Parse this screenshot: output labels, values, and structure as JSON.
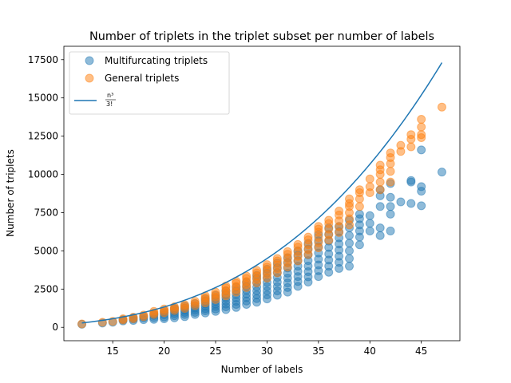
{
  "chart_data": {
    "type": "scatter",
    "title": "Number of triplets in the triplet subset per number of labels",
    "xlabel": "Number of labels",
    "ylabel": "Number of triplets",
    "xlim": [
      10.25,
      48.75
    ],
    "ylim": [
      -875,
      18375
    ],
    "xticks": [
      15,
      20,
      25,
      30,
      35,
      40,
      45
    ],
    "yticks": [
      0,
      2500,
      5000,
      7500,
      10000,
      12500,
      15000,
      17500
    ],
    "grid": false,
    "legend_position": "upper-left",
    "series": [
      {
        "name": "Multifurcating triplets",
        "kind": "scatter",
        "color": "#1f77b4",
        "alpha": 0.5,
        "points": [
          [
            12,
            200
          ],
          [
            14,
            280
          ],
          [
            15,
            330
          ],
          [
            16,
            420
          ],
          [
            16,
            500
          ],
          [
            17,
            450
          ],
          [
            17,
            540
          ],
          [
            17,
            640
          ],
          [
            18,
            500
          ],
          [
            18,
            620
          ],
          [
            18,
            720
          ],
          [
            19,
            520
          ],
          [
            19,
            640
          ],
          [
            19,
            780
          ],
          [
            19,
            880
          ],
          [
            20,
            560
          ],
          [
            20,
            680
          ],
          [
            20,
            820
          ],
          [
            20,
            960
          ],
          [
            20,
            1080
          ],
          [
            21,
            620
          ],
          [
            21,
            760
          ],
          [
            21,
            900
          ],
          [
            21,
            1040
          ],
          [
            21,
            1180
          ],
          [
            21,
            1260
          ],
          [
            22,
            700
          ],
          [
            22,
            840
          ],
          [
            22,
            980
          ],
          [
            22,
            1120
          ],
          [
            22,
            1260
          ],
          [
            22,
            1400
          ],
          [
            23,
            840
          ],
          [
            23,
            980
          ],
          [
            23,
            1120
          ],
          [
            23,
            1260
          ],
          [
            23,
            1400
          ],
          [
            23,
            1560
          ],
          [
            24,
            940
          ],
          [
            24,
            1080
          ],
          [
            24,
            1220
          ],
          [
            24,
            1380
          ],
          [
            24,
            1540
          ],
          [
            24,
            1720
          ],
          [
            24,
            1860
          ],
          [
            25,
            1040
          ],
          [
            25,
            1200
          ],
          [
            25,
            1360
          ],
          [
            25,
            1520
          ],
          [
            25,
            1700
          ],
          [
            25,
            1900
          ],
          [
            25,
            2080
          ],
          [
            26,
            1160
          ],
          [
            26,
            1340
          ],
          [
            26,
            1520
          ],
          [
            26,
            1720
          ],
          [
            26,
            1920
          ],
          [
            26,
            2140
          ],
          [
            26,
            2380
          ],
          [
            27,
            1300
          ],
          [
            27,
            1500
          ],
          [
            27,
            1700
          ],
          [
            27,
            1920
          ],
          [
            27,
            2140
          ],
          [
            27,
            2380
          ],
          [
            27,
            2620
          ],
          [
            28,
            1500
          ],
          [
            28,
            1720
          ],
          [
            28,
            1940
          ],
          [
            28,
            2180
          ],
          [
            28,
            2420
          ],
          [
            28,
            2680
          ],
          [
            28,
            2940
          ],
          [
            29,
            1640
          ],
          [
            29,
            1880
          ],
          [
            29,
            2120
          ],
          [
            29,
            2380
          ],
          [
            29,
            2640
          ],
          [
            29,
            2920
          ],
          [
            29,
            3200
          ],
          [
            29,
            3400
          ],
          [
            30,
            1860
          ],
          [
            30,
            2120
          ],
          [
            30,
            2380
          ],
          [
            30,
            2660
          ],
          [
            30,
            2940
          ],
          [
            30,
            3240
          ],
          [
            30,
            3540
          ],
          [
            30,
            3800
          ],
          [
            31,
            2100
          ],
          [
            31,
            2380
          ],
          [
            31,
            2660
          ],
          [
            31,
            2960
          ],
          [
            31,
            3260
          ],
          [
            31,
            3580
          ],
          [
            31,
            3900
          ],
          [
            31,
            4200
          ],
          [
            32,
            2300
          ],
          [
            32,
            2600
          ],
          [
            32,
            2900
          ],
          [
            32,
            3220
          ],
          [
            32,
            3540
          ],
          [
            32,
            3880
          ],
          [
            32,
            4240
          ],
          [
            32,
            4560
          ],
          [
            33,
            2680
          ],
          [
            33,
            3000
          ],
          [
            33,
            3320
          ],
          [
            33,
            3660
          ],
          [
            33,
            4000
          ],
          [
            33,
            4360
          ],
          [
            33,
            4720
          ],
          [
            33,
            5000
          ],
          [
            34,
            2960
          ],
          [
            34,
            3300
          ],
          [
            34,
            3640
          ],
          [
            34,
            4000
          ],
          [
            34,
            4360
          ],
          [
            34,
            4740
          ],
          [
            34,
            5120
          ],
          [
            34,
            5480
          ],
          [
            35,
            3320
          ],
          [
            35,
            3700
          ],
          [
            35,
            4080
          ],
          [
            35,
            4460
          ],
          [
            35,
            4860
          ],
          [
            35,
            5260
          ],
          [
            35,
            5660
          ],
          [
            35,
            6050
          ],
          [
            36,
            3600
          ],
          [
            36,
            4000
          ],
          [
            36,
            4400
          ],
          [
            36,
            4800
          ],
          [
            36,
            5220
          ],
          [
            36,
            5640
          ],
          [
            36,
            6080
          ],
          [
            36,
            6500
          ],
          [
            37,
            3850
          ],
          [
            37,
            4250
          ],
          [
            37,
            4650
          ],
          [
            37,
            5050
          ],
          [
            37,
            5450
          ],
          [
            37,
            5850
          ],
          [
            37,
            6250
          ],
          [
            37,
            6600
          ],
          [
            38,
            4000
          ],
          [
            38,
            4500
          ],
          [
            38,
            5000
          ],
          [
            38,
            5500
          ],
          [
            38,
            6000
          ],
          [
            38,
            6500
          ],
          [
            38,
            7000
          ],
          [
            39,
            5400
          ],
          [
            39,
            5900
          ],
          [
            39,
            6300
          ],
          [
            39,
            6700
          ],
          [
            39,
            7100
          ],
          [
            39,
            7400
          ],
          [
            40,
            6300
          ],
          [
            40,
            6800
          ],
          [
            40,
            7300
          ],
          [
            41,
            6000
          ],
          [
            41,
            6500
          ],
          [
            41,
            7900
          ],
          [
            41,
            8600
          ],
          [
            41,
            9000
          ],
          [
            42,
            6300
          ],
          [
            42,
            7400
          ],
          [
            42,
            7900
          ],
          [
            42,
            8500
          ],
          [
            42,
            9400
          ],
          [
            43,
            8200
          ],
          [
            44,
            8100
          ],
          [
            44,
            9500
          ],
          [
            44,
            9600
          ],
          [
            45,
            7950
          ],
          [
            45,
            8900
          ],
          [
            45,
            9200
          ],
          [
            45,
            11600
          ],
          [
            47,
            10150
          ]
        ]
      },
      {
        "name": "General triplets",
        "kind": "scatter",
        "color": "#ff7f0e",
        "alpha": 0.5,
        "points": [
          [
            12,
            220
          ],
          [
            14,
            330
          ],
          [
            15,
            390
          ],
          [
            16,
            480
          ],
          [
            16,
            560
          ],
          [
            17,
            560
          ],
          [
            17,
            660
          ],
          [
            18,
            700
          ],
          [
            18,
            800
          ],
          [
            19,
            840
          ],
          [
            19,
            940
          ],
          [
            19,
            1040
          ],
          [
            20,
            960
          ],
          [
            20,
            1080
          ],
          [
            20,
            1200
          ],
          [
            21,
            1100
          ],
          [
            21,
            1220
          ],
          [
            21,
            1340
          ],
          [
            22,
            1240
          ],
          [
            22,
            1360
          ],
          [
            22,
            1480
          ],
          [
            23,
            1420
          ],
          [
            23,
            1560
          ],
          [
            23,
            1700
          ],
          [
            24,
            1600
          ],
          [
            24,
            1760
          ],
          [
            24,
            1920
          ],
          [
            24,
            2060
          ],
          [
            25,
            1820
          ],
          [
            25,
            1980
          ],
          [
            25,
            2140
          ],
          [
            25,
            2300
          ],
          [
            26,
            2060
          ],
          [
            26,
            2220
          ],
          [
            26,
            2400
          ],
          [
            26,
            2580
          ],
          [
            26,
            2700
          ],
          [
            27,
            2300
          ],
          [
            27,
            2480
          ],
          [
            27,
            2680
          ],
          [
            27,
            2880
          ],
          [
            27,
            3020
          ],
          [
            28,
            2600
          ],
          [
            28,
            2800
          ],
          [
            28,
            3000
          ],
          [
            28,
            3200
          ],
          [
            28,
            3350
          ],
          [
            29,
            2900
          ],
          [
            29,
            3120
          ],
          [
            29,
            3340
          ],
          [
            29,
            3560
          ],
          [
            29,
            3720
          ],
          [
            30,
            3220
          ],
          [
            30,
            3460
          ],
          [
            30,
            3700
          ],
          [
            30,
            3940
          ],
          [
            30,
            4100
          ],
          [
            31,
            3560
          ],
          [
            31,
            3820
          ],
          [
            31,
            4080
          ],
          [
            31,
            4340
          ],
          [
            31,
            4500
          ],
          [
            32,
            3940
          ],
          [
            32,
            4220
          ],
          [
            32,
            4500
          ],
          [
            32,
            4780
          ],
          [
            32,
            4950
          ],
          [
            33,
            4340
          ],
          [
            33,
            4640
          ],
          [
            33,
            4940
          ],
          [
            33,
            5240
          ],
          [
            33,
            5420
          ],
          [
            34,
            4760
          ],
          [
            34,
            5080
          ],
          [
            34,
            5400
          ],
          [
            34,
            5720
          ],
          [
            34,
            5900
          ],
          [
            35,
            5200
          ],
          [
            35,
            5540
          ],
          [
            35,
            5880
          ],
          [
            35,
            6220
          ],
          [
            35,
            6420
          ],
          [
            35,
            6600
          ],
          [
            36,
            5700
          ],
          [
            36,
            6060
          ],
          [
            36,
            6420
          ],
          [
            36,
            6780
          ],
          [
            36,
            7000
          ],
          [
            37,
            6200
          ],
          [
            37,
            6580
          ],
          [
            37,
            6960
          ],
          [
            37,
            7340
          ],
          [
            37,
            7600
          ],
          [
            38,
            6700
          ],
          [
            38,
            7100
          ],
          [
            38,
            7500
          ],
          [
            38,
            7900
          ],
          [
            38,
            8100
          ],
          [
            38,
            8400
          ],
          [
            39,
            7900
          ],
          [
            39,
            8400
          ],
          [
            39,
            8800
          ],
          [
            39,
            9000
          ],
          [
            40,
            8800
          ],
          [
            40,
            9200
          ],
          [
            40,
            9700
          ],
          [
            41,
            9000
          ],
          [
            41,
            9500
          ],
          [
            41,
            10000
          ],
          [
            41,
            10300
          ],
          [
            41,
            10600
          ],
          [
            42,
            9500
          ],
          [
            42,
            10200
          ],
          [
            42,
            10700
          ],
          [
            42,
            11100
          ],
          [
            42,
            11400
          ],
          [
            43,
            11500
          ],
          [
            43,
            11900
          ],
          [
            44,
            11800
          ],
          [
            44,
            12300
          ],
          [
            44,
            12600
          ],
          [
            45,
            12400
          ],
          [
            45,
            12600
          ],
          [
            45,
            13100
          ],
          [
            45,
            13600
          ],
          [
            47,
            14400
          ]
        ]
      },
      {
        "name": "n³/3!",
        "kind": "line",
        "color": "#1f77b4",
        "function": "n^3/6",
        "x_range": [
          12,
          47
        ]
      }
    ]
  }
}
